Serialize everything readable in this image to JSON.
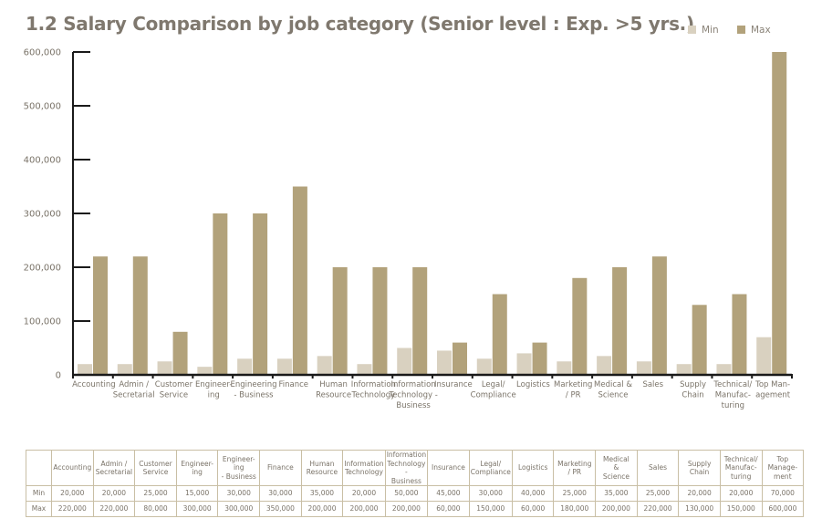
{
  "title": "1.2 Salary Comparison by job category (Senior level : Exp. >5 yrs.)",
  "colors": {
    "min": "#d9d1c0",
    "max": "#b2a27b",
    "axis": "#1a1a1a"
  },
  "chart_data": {
    "type": "bar",
    "title": "1.2 Salary Comparison by job category (Senior level : Exp. >5 yrs.)",
    "xlabel": "",
    "ylabel": "",
    "ylim": [
      0,
      600000
    ],
    "yticks": [
      "0",
      "100,000",
      "200,000",
      "300,000",
      "400,000",
      "500,000",
      "600,000"
    ],
    "ytick_values": [
      0,
      100000,
      200000,
      300000,
      400000,
      500000,
      600000
    ],
    "legend_position": "top-right",
    "grid": false,
    "categories": [
      [
        "Accounting"
      ],
      [
        "Admin /",
        "Secretarial"
      ],
      [
        "Customer",
        "Service"
      ],
      [
        "Engineer-",
        "ing"
      ],
      [
        "Engineering",
        "- Business"
      ],
      [
        "Finance"
      ],
      [
        "Human",
        "Resource"
      ],
      [
        "Information",
        "Technology"
      ],
      [
        "Information",
        "Technology -",
        "Business"
      ],
      [
        "Insurance"
      ],
      [
        "Legal/",
        "Compliance"
      ],
      [
        "Logistics"
      ],
      [
        "Marketing",
        "/ PR"
      ],
      [
        "Medical &",
        "Science"
      ],
      [
        "Sales"
      ],
      [
        "Supply",
        "Chain"
      ],
      [
        "Technical/",
        "Manufac-",
        "turing"
      ],
      [
        "Top Man-",
        "agement"
      ]
    ],
    "series": [
      {
        "name": "Min",
        "values": [
          20000,
          20000,
          25000,
          15000,
          30000,
          30000,
          35000,
          20000,
          50000,
          45000,
          30000,
          40000,
          25000,
          35000,
          25000,
          20000,
          20000,
          70000
        ]
      },
      {
        "name": "Max",
        "values": [
          220000,
          220000,
          80000,
          300000,
          300000,
          350000,
          200000,
          200000,
          200000,
          60000,
          150000,
          60000,
          180000,
          200000,
          220000,
          130000,
          150000,
          600000
        ]
      }
    ]
  },
  "table": {
    "header": [
      [
        "Accounting"
      ],
      [
        "Admin /",
        "Secretarial"
      ],
      [
        "Customer",
        "Service"
      ],
      [
        "Engineer-",
        "ing"
      ],
      [
        "Engineer-",
        "ing",
        "- Business"
      ],
      [
        "Finance"
      ],
      [
        "Human",
        "Resource"
      ],
      [
        "Information",
        "Technology"
      ],
      [
        "Information",
        "Technology -",
        "Business"
      ],
      [
        "Insurance"
      ],
      [
        "Legal/",
        "Compliance"
      ],
      [
        "Logistics"
      ],
      [
        "Marketing",
        "/ PR"
      ],
      [
        "Medical",
        "&",
        "Science"
      ],
      [
        "Sales"
      ],
      [
        "Supply",
        "Chain"
      ],
      [
        "Technical/",
        "Manufac-",
        "turing"
      ],
      [
        "Top",
        "Manage-",
        "ment"
      ]
    ],
    "rows": [
      {
        "label": "Min",
        "values": [
          "20,000",
          "20,000",
          "25,000",
          "15,000",
          "30,000",
          "30,000",
          "35,000",
          "20,000",
          "50,000",
          "45,000",
          "30,000",
          "40,000",
          "25,000",
          "35,000",
          "25,000",
          "20,000",
          "20,000",
          "70,000"
        ]
      },
      {
        "label": "Max",
        "values": [
          "220,000",
          "220,000",
          "80,000",
          "300,000",
          "300,000",
          "350,000",
          "200,000",
          "200,000",
          "200,000",
          "60,000",
          "150,000",
          "60,000",
          "180,000",
          "200,000",
          "220,000",
          "130,000",
          "150,000",
          "600,000"
        ]
      }
    ]
  }
}
